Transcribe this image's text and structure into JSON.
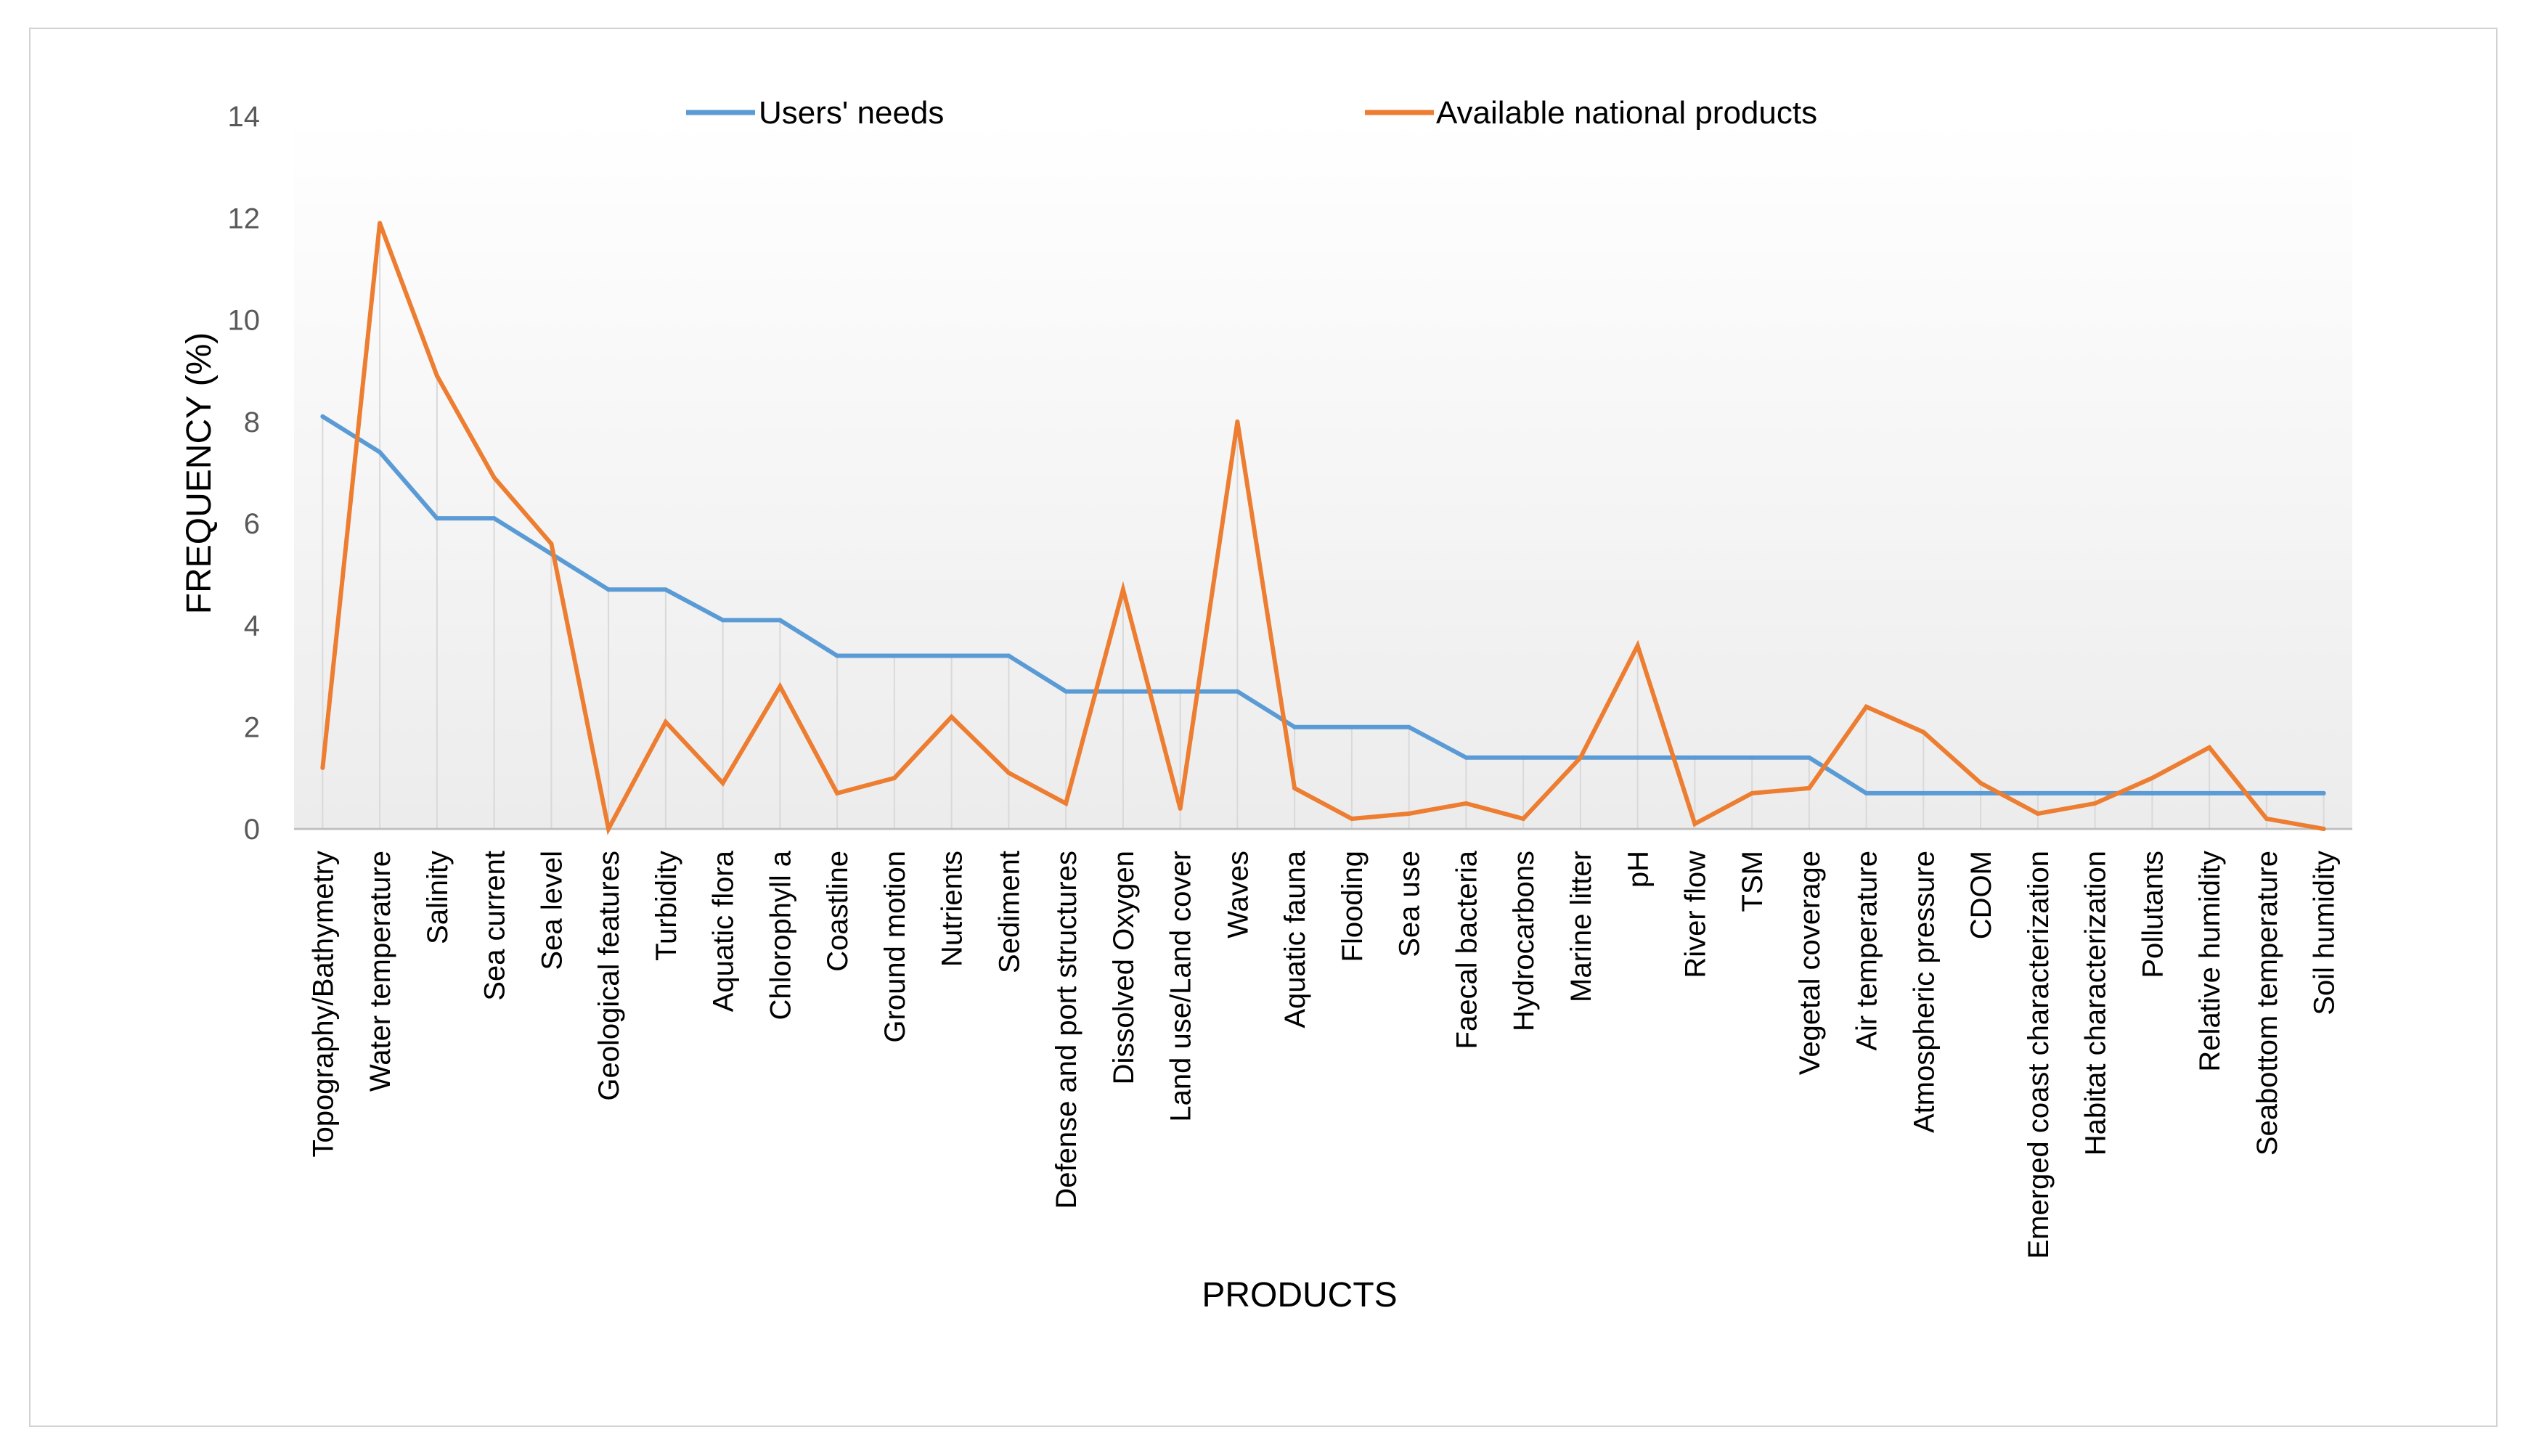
{
  "chart_data": {
    "type": "line",
    "title": "",
    "xlabel": "PRODUCTS",
    "ylabel": "FREQUENCY (%)",
    "ylim": [
      0,
      14
    ],
    "yticks": [
      0,
      2,
      4,
      6,
      8,
      10,
      12,
      14
    ],
    "grid": "vertical drop lines",
    "legend_position": "top",
    "categories": [
      "Topography/Bathymetry",
      "Water temperature",
      "Salinity",
      "Sea current",
      "Sea level",
      "Geological features",
      "Turbidity",
      "Aquatic flora",
      "Chlorophyll a",
      "Coastline",
      "Ground motion",
      "Nutrients",
      "Sediment",
      "Defense and port structures",
      "Dissolved Oxygen",
      "Land use/Land cover",
      "Waves",
      "Aquatic fauna",
      "Flooding",
      "Sea use",
      "Faecal bacteria",
      "Hydrocarbons",
      "Marine litter",
      "pH",
      "River flow",
      "TSM",
      "Vegetal coverage",
      "Air temperature",
      "Atmospheric pressure",
      "CDOM",
      "Emerged coast characterization",
      "Habitat characterization",
      "Pollutants",
      "Relative humidity",
      "Seabottom temperature",
      "Soil humidity"
    ],
    "series": [
      {
        "name": "Users' needs",
        "color": "#5b9bd5",
        "values": [
          8.1,
          7.4,
          6.1,
          6.1,
          5.4,
          4.7,
          4.7,
          4.1,
          4.1,
          3.4,
          3.4,
          3.4,
          3.4,
          2.7,
          2.7,
          2.7,
          2.7,
          2.0,
          2.0,
          2.0,
          1.4,
          1.4,
          1.4,
          1.4,
          1.4,
          1.4,
          1.4,
          0.7,
          0.7,
          0.7,
          0.7,
          0.7,
          0.7,
          0.7,
          0.7,
          0.7
        ]
      },
      {
        "name": "Available national products",
        "color": "#ed7d31",
        "values": [
          1.2,
          11.9,
          8.9,
          6.9,
          5.6,
          0.0,
          2.1,
          0.9,
          2.8,
          0.7,
          1.0,
          2.2,
          1.1,
          0.5,
          4.7,
          0.4,
          8.0,
          0.8,
          0.2,
          0.3,
          0.5,
          0.2,
          1.4,
          3.6,
          0.1,
          0.7,
          0.8,
          2.4,
          1.9,
          0.9,
          0.3,
          0.5,
          1.0,
          1.6,
          0.2,
          0.0
        ]
      }
    ]
  }
}
